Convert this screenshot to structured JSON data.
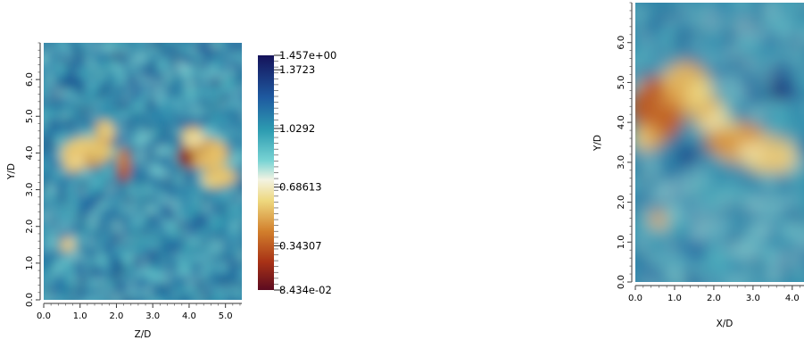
{
  "chart_data": [
    {
      "type": "heatmap",
      "name": "left-contour-plot",
      "xlabel": "Z/D",
      "ylabel": "Y/D",
      "xlim": [
        0.0,
        5.45
      ],
      "ylim": [
        0.0,
        7.0
      ],
      "x_ticks": [
        "0.0",
        "1.0",
        "2.0",
        "3.0",
        "4.0",
        "5.0"
      ],
      "y_ticks": [
        "0.0",
        "1.0",
        "2.0",
        "3.0",
        "4.0",
        "5.0",
        "6.0"
      ],
      "background_value": 1.08,
      "features": [
        {
          "x": 1.2,
          "y": 4.0,
          "rx": 0.65,
          "ry": 0.4,
          "v": 0.5
        },
        {
          "x": 1.65,
          "y": 4.55,
          "rx": 0.25,
          "ry": 0.35,
          "v": 0.55
        },
        {
          "x": 2.2,
          "y": 3.7,
          "rx": 0.18,
          "ry": 0.45,
          "v": 0.35
        },
        {
          "x": 0.85,
          "y": 3.7,
          "rx": 0.3,
          "ry": 0.2,
          "v": 0.6
        },
        {
          "x": 4.4,
          "y": 4.0,
          "rx": 0.65,
          "ry": 0.42,
          "v": 0.5
        },
        {
          "x": 3.9,
          "y": 3.85,
          "rx": 0.22,
          "ry": 0.25,
          "v": 0.2
        },
        {
          "x": 4.8,
          "y": 3.35,
          "rx": 0.45,
          "ry": 0.28,
          "v": 0.55
        },
        {
          "x": 4.1,
          "y": 4.45,
          "rx": 0.3,
          "ry": 0.25,
          "v": 0.6
        },
        {
          "x": 0.65,
          "y": 1.5,
          "rx": 0.2,
          "ry": 0.18,
          "v": 0.6
        }
      ]
    },
    {
      "type": "heatmap",
      "name": "right-contour-plot",
      "xlabel": "X/D",
      "ylabel": "Y/D",
      "xlim": [
        0.0,
        4.3
      ],
      "ylim": [
        0.0,
        7.0
      ],
      "x_ticks": [
        "0.0",
        "1.0",
        "2.0",
        "3.0",
        "4.0"
      ],
      "y_ticks": [
        "0.0",
        "1.0",
        "2.0",
        "3.0",
        "4.0",
        "5.0",
        "6.0"
      ],
      "background_value": 1.05,
      "features": [
        {
          "x": 0.6,
          "y": 4.4,
          "rx": 0.75,
          "ry": 0.75,
          "v": 0.4
        },
        {
          "x": 1.3,
          "y": 4.9,
          "rx": 0.6,
          "ry": 0.6,
          "v": 0.5
        },
        {
          "x": 0.3,
          "y": 3.6,
          "rx": 0.4,
          "ry": 0.3,
          "v": 0.55
        },
        {
          "x": 2.6,
          "y": 3.5,
          "rx": 0.7,
          "ry": 0.5,
          "v": 0.55
        },
        {
          "x": 3.4,
          "y": 3.2,
          "rx": 0.7,
          "ry": 0.45,
          "v": 0.58
        },
        {
          "x": 1.9,
          "y": 4.2,
          "rx": 0.4,
          "ry": 0.4,
          "v": 0.6
        },
        {
          "x": 0.6,
          "y": 1.55,
          "rx": 0.22,
          "ry": 0.2,
          "v": 0.5
        },
        {
          "x": 1.35,
          "y": 3.2,
          "rx": 0.3,
          "ry": 0.25,
          "v": 1.3
        },
        {
          "x": 3.8,
          "y": 4.8,
          "rx": 0.35,
          "ry": 0.3,
          "v": 1.3
        }
      ]
    }
  ],
  "colorbar": {
    "range": [
      0.08434,
      1.457
    ],
    "min_label": "8.434e-02",
    "max_label": "1.457e+00",
    "labels": [
      {
        "value": 1.3723,
        "text": "1.3723"
      },
      {
        "value": 1.0292,
        "text": "1.0292"
      },
      {
        "value": 0.68613,
        "text": "0.68613"
      },
      {
        "value": 0.34307,
        "text": "0.34307"
      }
    ],
    "color_stops": [
      {
        "t": 0.0,
        "color": "#5c0b20"
      },
      {
        "t": 0.12,
        "color": "#a83216"
      },
      {
        "t": 0.25,
        "color": "#d27f2c"
      },
      {
        "t": 0.38,
        "color": "#eed87e"
      },
      {
        "t": 0.47,
        "color": "#f3f3e2"
      },
      {
        "t": 0.55,
        "color": "#79d4d4"
      },
      {
        "t": 0.68,
        "color": "#2d9cb1"
      },
      {
        "t": 0.82,
        "color": "#1e5aa0"
      },
      {
        "t": 1.0,
        "color": "#15125a"
      }
    ]
  }
}
